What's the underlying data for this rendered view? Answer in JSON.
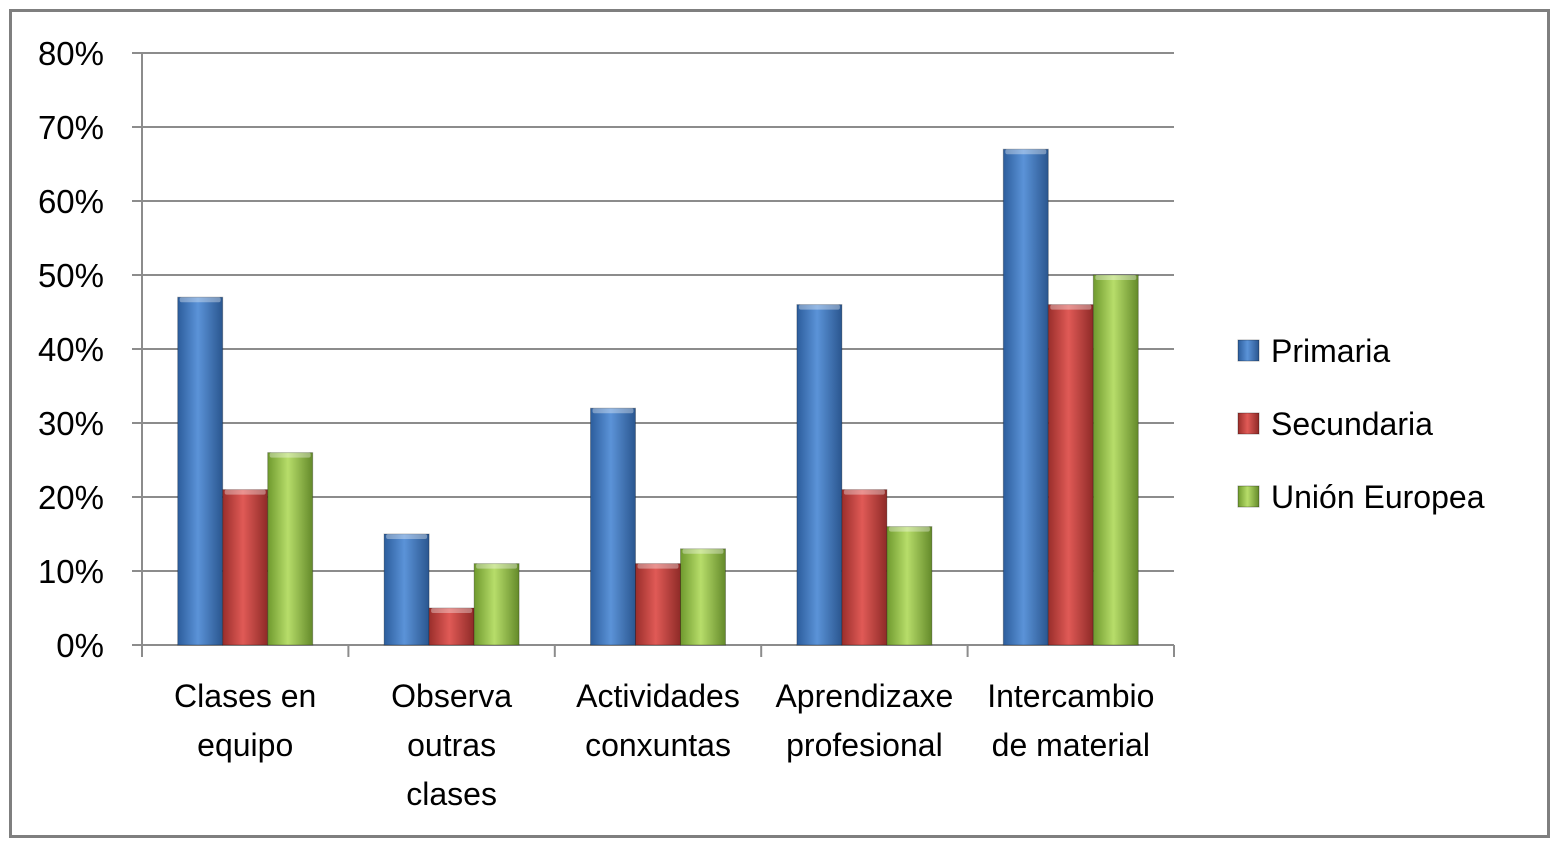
{
  "chart_data": {
    "type": "bar",
    "title": "",
    "xlabel": "",
    "ylabel": "",
    "ylim": [
      0,
      0.8
    ],
    "yticks": [
      "0%",
      "10%",
      "20%",
      "30%",
      "40%",
      "50%",
      "60%",
      "70%",
      "80%"
    ],
    "grid": true,
    "legend_position": "right",
    "categories": [
      [
        "Clases en",
        "equipo"
      ],
      [
        "Observa",
        "outras",
        "clases"
      ],
      [
        "Actividades",
        "conxuntas"
      ],
      [
        "Aprendizaxe",
        "profesional"
      ],
      [
        "Intercambio",
        "de material"
      ]
    ],
    "series": [
      {
        "name": "Primaria",
        "color": "#4a7ebb",
        "values": [
          0.47,
          0.15,
          0.32,
          0.46,
          0.67
        ]
      },
      {
        "name": "Secundaria",
        "color": "#be4b48",
        "values": [
          0.21,
          0.05,
          0.11,
          0.21,
          0.46
        ]
      },
      {
        "name": "Unión Europea",
        "color": "#98b954",
        "values": [
          0.26,
          0.11,
          0.13,
          0.16,
          0.5
        ]
      }
    ]
  }
}
